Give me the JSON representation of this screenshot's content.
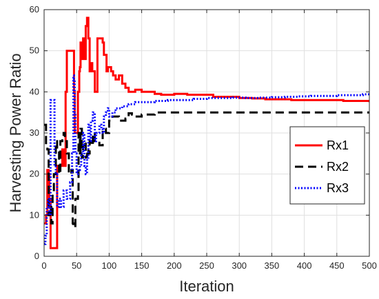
{
  "chart_data": {
    "type": "line",
    "title": "",
    "xlabel": "Iteration",
    "ylabel": "Harvesting Power Ratio",
    "xlim": [
      0,
      500
    ],
    "ylim": [
      0,
      60
    ],
    "xticks": [
      0,
      50,
      100,
      150,
      200,
      250,
      300,
      350,
      400,
      450,
      500
    ],
    "yticks": [
      0,
      10,
      20,
      30,
      40,
      50,
      60
    ],
    "xtick_labels": [
      "0",
      "50",
      "100",
      "150",
      "200",
      "250",
      "300",
      "350",
      "400",
      "450",
      "500"
    ],
    "ytick_labels": [
      "0",
      "10",
      "20",
      "30",
      "40",
      "50",
      "60"
    ],
    "grid": true,
    "legend_position": "right",
    "series": [
      {
        "name": "Rx1",
        "color": "#ff0000",
        "style": "solid",
        "x": [
          0,
          3,
          5,
          7,
          8,
          10,
          12,
          16,
          17,
          20,
          22,
          25,
          28,
          30,
          33,
          35,
          37,
          38,
          45,
          46,
          47,
          48,
          50,
          52,
          54,
          55,
          56,
          58,
          60,
          62,
          64,
          66,
          67,
          68,
          70,
          72,
          74,
          76,
          78,
          80,
          82,
          85,
          88,
          90,
          92,
          94,
          96,
          98,
          100,
          103,
          106,
          110,
          115,
          120,
          125,
          130,
          140,
          150,
          160,
          170,
          180,
          200,
          220,
          240,
          260,
          280,
          300,
          320,
          340,
          360,
          380,
          400,
          420,
          440,
          460,
          480,
          500
        ],
        "y": [
          8,
          10,
          21,
          20,
          14,
          2,
          2,
          2,
          2,
          22,
          22,
          22,
          26,
          22,
          40,
          50,
          50,
          50,
          50,
          40,
          30,
          30,
          30,
          40,
          45,
          46,
          52,
          48,
          53,
          48,
          56,
          58,
          58,
          53,
          45,
          47,
          45,
          45,
          40,
          40,
          53,
          53,
          53,
          52,
          49,
          49,
          45,
          46,
          46,
          45,
          44,
          43,
          44,
          42,
          41,
          40,
          40.5,
          40,
          40,
          39.5,
          39.3,
          39.5,
          39.3,
          39.3,
          38.8,
          38.8,
          38.5,
          38.4,
          38.2,
          38.2,
          38.0,
          38.0,
          38.0,
          38.0,
          37.8,
          37.8,
          37.5
        ]
      },
      {
        "name": "Rx2",
        "color": "#000000",
        "style": "dashed",
        "x": [
          0,
          3,
          5,
          7,
          9,
          11,
          13,
          15,
          18,
          20,
          23,
          25,
          28,
          30,
          32,
          35,
          38,
          42,
          44,
          45,
          47,
          48,
          50,
          52,
          53,
          55,
          56,
          58,
          60,
          62,
          64,
          66,
          68,
          70,
          72,
          75,
          78,
          80,
          85,
          90,
          95,
          100,
          105,
          110,
          115,
          120,
          125,
          130,
          135,
          140,
          150,
          160,
          170,
          180,
          200,
          250,
          300,
          350,
          400,
          450,
          500
        ],
        "y": [
          32,
          27,
          26,
          10,
          12,
          8,
          15,
          20,
          28,
          26,
          20,
          28,
          29,
          30,
          28,
          25,
          20,
          21,
          8,
          7,
          7,
          14,
          14,
          15,
          30,
          25,
          31,
          24,
          27,
          28,
          24,
          26,
          25,
          28,
          27,
          30,
          28,
          28,
          27,
          31,
          30,
          33,
          34,
          34,
          33,
          33,
          33.5,
          34.8,
          34.5,
          34,
          34.5,
          34.5,
          35,
          35,
          35,
          35,
          35,
          35,
          35,
          35,
          35
        ]
      },
      {
        "name": "Rx3",
        "color": "#0000ff",
        "style": "dotted",
        "x": [
          0,
          2,
          4,
          6,
          8,
          10,
          12,
          14,
          16,
          18,
          20,
          23,
          26,
          30,
          35,
          40,
          43,
          45,
          46,
          47,
          48,
          50,
          52,
          55,
          57,
          60,
          62,
          64,
          66,
          68,
          70,
          72,
          75,
          78,
          80,
          82,
          85,
          88,
          90,
          92,
          95,
          98,
          100,
          105,
          110,
          120,
          130,
          140,
          150,
          170,
          190,
          210,
          230,
          250,
          270,
          290,
          310,
          330,
          350,
          370,
          390,
          410,
          430,
          450,
          470,
          490,
          500
        ],
        "y": [
          3,
          5,
          12,
          14,
          10,
          38,
          38,
          38,
          22,
          20,
          12,
          14,
          12,
          16,
          14,
          18,
          25,
          44,
          43,
          35,
          25,
          20,
          21,
          22,
          25,
          30,
          22,
          20,
          24,
          32,
          28,
          33,
          35,
          28,
          30,
          30,
          32,
          31,
          30,
          34,
          35,
          36,
          34,
          35,
          36,
          36.5,
          37,
          37.5,
          37.5,
          37.8,
          38,
          38,
          38.3,
          38.5,
          38.5,
          38.6,
          38.5,
          38.6,
          38.7,
          38.8,
          38.9,
          39,
          39,
          39.2,
          39.2,
          39.4,
          39.6
        ]
      }
    ]
  }
}
